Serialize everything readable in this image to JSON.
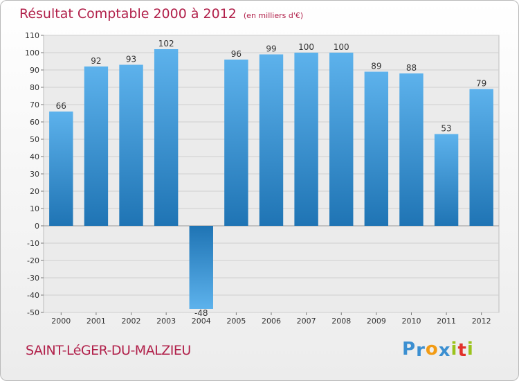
{
  "chart_data": {
    "type": "bar",
    "title": "Résultat Comptable 2000 à 2012",
    "subtitle": "(en milliers d'€)",
    "categories": [
      "2000",
      "2001",
      "2002",
      "2003",
      "2004",
      "2005",
      "2006",
      "2007",
      "2008",
      "2009",
      "2010",
      "2011",
      "2012"
    ],
    "values": [
      66,
      92,
      93,
      102,
      -48,
      96,
      99,
      100,
      100,
      89,
      88,
      53,
      79
    ],
    "ylim": [
      -50,
      110
    ],
    "yticks": [
      110,
      100,
      90,
      80,
      70,
      60,
      50,
      40,
      30,
      20,
      10,
      0,
      -10,
      -20,
      -30,
      -40,
      -50
    ],
    "grid": true,
    "legend": "none",
    "bar_color": "#3f97d8"
  },
  "footer": {
    "commune": "SAINT-LéGER-DU-MALZIEU",
    "brand": {
      "letters": [
        "P",
        "r",
        "o",
        "x",
        "i",
        "t",
        "i"
      ],
      "colors": [
        "#3b8fd1",
        "#3b8fd1",
        "#f29b14",
        "#3b8fd1",
        "#9bc31c",
        "#e2312b",
        "#9bc31c"
      ]
    }
  }
}
